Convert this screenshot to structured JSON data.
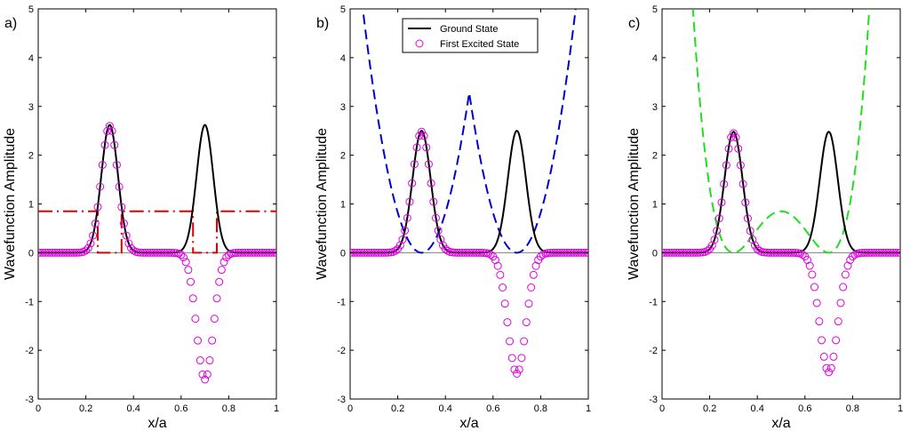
{
  "chart_data": [
    {
      "type": "line",
      "panel_label": "a)",
      "xlabel": "x/a",
      "ylabel": "Wavefunction Amplitude",
      "xlim": [
        0,
        1
      ],
      "ylim": [
        -3,
        5
      ],
      "xticks": [
        "0",
        "0.2",
        "0.4",
        "0.6",
        "0.8",
        "1"
      ],
      "yticks": [
        "-3",
        "-2",
        "-1",
        "0",
        "1",
        "2",
        "3",
        "4",
        "5"
      ],
      "ground_state": {
        "centers": [
          0.3,
          0.7
        ],
        "amplitude": 2.62,
        "width": 0.035
      },
      "excited_state": {
        "centers": [
          0.3,
          0.7
        ],
        "amplitude": 2.6,
        "width": 0.035
      },
      "potential": {
        "style": "dash-dot",
        "color": "#e00000",
        "points": [
          [
            0,
            0.85
          ],
          [
            0.25,
            0.85
          ],
          [
            0.25,
            0
          ],
          [
            0.35,
            0
          ],
          [
            0.35,
            0.85
          ],
          [
            0.65,
            0.85
          ],
          [
            0.65,
            0
          ],
          [
            0.75,
            0
          ],
          [
            0.75,
            0.85
          ],
          [
            1,
            0.85
          ]
        ]
      }
    },
    {
      "type": "line",
      "panel_label": "b)",
      "xlabel": "x/a",
      "ylabel": "Wavefunction Amplitude",
      "xlim": [
        0,
        1
      ],
      "ylim": [
        -3,
        5
      ],
      "xticks": [
        "0",
        "0.2",
        "0.4",
        "0.6",
        "0.8",
        "1"
      ],
      "yticks": [
        "-3",
        "-2",
        "-1",
        "0",
        "1",
        "2",
        "3",
        "4",
        "5"
      ],
      "ground_state": {
        "centers": [
          0.3,
          0.7
        ],
        "amplitude": 2.5,
        "width": 0.038
      },
      "excited_state": {
        "centers": [
          0.3,
          0.7
        ],
        "amplitude": 2.48,
        "width": 0.038
      },
      "potential": {
        "style": "dashed",
        "color": "#0000d0",
        "kind": "double-parabola",
        "minima": [
          0.3,
          0.7
        ],
        "coefficient": 82,
        "barrier_height": 3.3
      },
      "legend": {
        "placement": "top-center",
        "entries": [
          "Ground State",
          "First Excited State"
        ]
      }
    },
    {
      "type": "line",
      "panel_label": "c)",
      "xlabel": "x/a",
      "ylabel": "Wavefunction Amplitude",
      "xlim": [
        0,
        1
      ],
      "ylim": [
        -3,
        5
      ],
      "xticks": [
        "0",
        "0.2",
        "0.4",
        "0.6",
        "0.8",
        "1"
      ],
      "yticks": [
        "-3",
        "-2",
        "-1",
        "0",
        "1",
        "2",
        "3",
        "4",
        "5"
      ],
      "ground_state": {
        "centers": [
          0.3,
          0.7
        ],
        "amplitude": 2.48,
        "width": 0.038
      },
      "excited_state": {
        "centers": [
          0.3,
          0.7
        ],
        "amplitude": 2.45,
        "width": 0.038
      },
      "potential": {
        "style": "dashed",
        "color": "#22dd22",
        "kind": "quartic-double-well",
        "center": 0.5,
        "minima_offset": 0.2,
        "barrier_height": 0.85
      }
    }
  ],
  "colors": {
    "ground_state": "#000000",
    "excited_state": "#e000e0",
    "zero_line": "#7f7f7f"
  }
}
